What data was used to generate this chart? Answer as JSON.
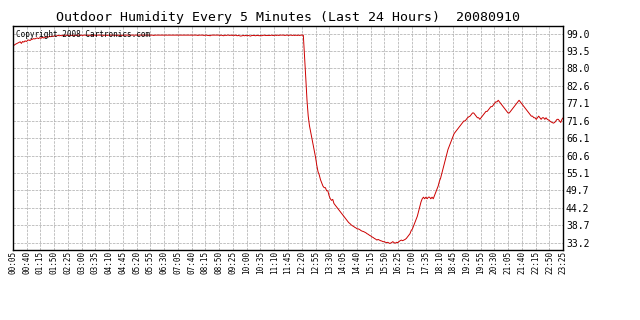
{
  "title": "Outdoor Humidity Every 5 Minutes (Last 24 Hours)  20080910",
  "copyright_text": "Copyright 2008 Cartronics.com",
  "line_color": "#cc0000",
  "background_color": "#ffffff",
  "grid_color": "#aaaaaa",
  "border_color": "#000000",
  "yticks": [
    33.2,
    38.7,
    44.2,
    49.7,
    55.1,
    60.6,
    66.1,
    71.6,
    77.1,
    82.6,
    88.0,
    93.5,
    99.0
  ],
  "ymin": 31.0,
  "ymax": 101.5,
  "x_tick_labels": [
    "00:05",
    "00:40",
    "01:15",
    "01:50",
    "02:25",
    "03:00",
    "03:35",
    "04:10",
    "04:45",
    "05:20",
    "05:55",
    "06:30",
    "07:05",
    "07:40",
    "08:15",
    "08:50",
    "09:25",
    "10:00",
    "10:35",
    "11:10",
    "11:45",
    "12:20",
    "12:55",
    "13:30",
    "14:05",
    "14:40",
    "15:15",
    "15:50",
    "16:25",
    "17:00",
    "17:35",
    "18:10",
    "18:45",
    "19:20",
    "19:55",
    "20:30",
    "21:05",
    "21:40",
    "22:15",
    "22:50",
    "23:25"
  ],
  "humidity_data": [
    95.0,
    95.3,
    95.6,
    95.8,
    96.0,
    96.2,
    96.4,
    95.9,
    96.5,
    96.3,
    96.7,
    96.5,
    96.8,
    97.0,
    96.8,
    97.1,
    97.2,
    97.4,
    97.3,
    97.5,
    97.6,
    97.4,
    97.7,
    97.5,
    97.8,
    97.6,
    97.9,
    97.8,
    98.0,
    97.9,
    98.1,
    98.0,
    98.2,
    98.1,
    98.3,
    98.2,
    98.3,
    98.4,
    98.3,
    98.4,
    98.3,
    98.5,
    98.4,
    98.5,
    98.4,
    98.5,
    98.4,
    98.5,
    98.4,
    98.5,
    98.4,
    98.5,
    98.4,
    98.5,
    98.5,
    98.4,
    98.5,
    98.4,
    98.5,
    98.5,
    98.4,
    98.5,
    98.4,
    98.5,
    98.5,
    98.4,
    98.5,
    98.5,
    98.4,
    98.5,
    98.5,
    98.5,
    98.5,
    98.5,
    98.4,
    98.5,
    98.5,
    98.4,
    98.5,
    98.5,
    98.5,
    98.5,
    98.5,
    98.4,
    98.5,
    98.4,
    98.5,
    98.4,
    98.5,
    98.4,
    98.5,
    98.5,
    98.5,
    98.5,
    98.5,
    98.5,
    98.5,
    98.5,
    98.5,
    98.5,
    98.5,
    98.5,
    98.5,
    98.5,
    98.5,
    98.5,
    98.5,
    98.5,
    98.5,
    98.5,
    98.5,
    98.5,
    98.5,
    98.5,
    98.5,
    98.4,
    98.5,
    98.5,
    98.5,
    98.5,
    98.5,
    98.5,
    98.5,
    98.5,
    98.5,
    98.5,
    98.5,
    98.5,
    98.5,
    98.5,
    98.5,
    98.5,
    98.5,
    98.5,
    98.5,
    98.5,
    98.5,
    98.5,
    98.5,
    98.5,
    98.5,
    98.5,
    98.5,
    98.5,
    98.5,
    98.5,
    98.5,
    98.5,
    98.5,
    98.5,
    98.5,
    98.4,
    98.5,
    98.5,
    98.5,
    98.5,
    98.4,
    98.5,
    98.5,
    98.4,
    98.4,
    98.3,
    98.5,
    98.5,
    98.5,
    98.5,
    98.5,
    98.5,
    98.5,
    98.4,
    98.5,
    98.4,
    98.3,
    98.5,
    98.4,
    98.5,
    98.5,
    98.4,
    98.5,
    98.4,
    98.5,
    98.4,
    98.5,
    98.3,
    98.4,
    98.3,
    98.2,
    98.3,
    98.4,
    98.3,
    98.4,
    98.3,
    98.4,
    98.3,
    98.2,
    98.4,
    98.4,
    98.4,
    98.3,
    98.4,
    98.4,
    98.3,
    98.4,
    98.3,
    98.4,
    98.5,
    98.4,
    98.4,
    98.4,
    98.4,
    98.4,
    98.5,
    98.4,
    98.4,
    98.5,
    98.4,
    98.5,
    98.4,
    98.5,
    98.5,
    98.5,
    98.5,
    98.4,
    98.5,
    98.5,
    98.4,
    98.5,
    98.5,
    98.4,
    98.5,
    98.4,
    98.5,
    98.4,
    98.5,
    98.4,
    98.5,
    98.5,
    98.5,
    92.0,
    85.0,
    78.0,
    73.0,
    70.0,
    68.0,
    66.0,
    64.0,
    62.0,
    60.0,
    57.5,
    55.5,
    54.5,
    53.0,
    52.0,
    51.0,
    50.5,
    50.5,
    49.5,
    49.5,
    48.0,
    47.0,
    46.5,
    46.8,
    45.5,
    45.0,
    44.5,
    44.0,
    43.5,
    43.0,
    42.5,
    42.0,
    41.5,
    41.0,
    40.5,
    40.0,
    39.5,
    39.2,
    38.8,
    38.5,
    38.3,
    38.0,
    37.8,
    37.5,
    37.5,
    37.3,
    37.0,
    36.8,
    36.7,
    36.5,
    36.3,
    36.0,
    35.8,
    35.5,
    35.3,
    35.0,
    34.8,
    34.5,
    34.3,
    34.0,
    34.2,
    34.0,
    33.8,
    33.7,
    33.5,
    33.5,
    33.3,
    33.2,
    33.3,
    33.0,
    33.0,
    33.2,
    33.5,
    33.2,
    33.0,
    33.3,
    33.2,
    33.5,
    33.8,
    34.0,
    33.8,
    34.0,
    34.2,
    34.5,
    35.0,
    35.5,
    36.0,
    37.0,
    37.5,
    38.5,
    39.5,
    40.5,
    41.5,
    43.0,
    44.5,
    46.0,
    47.0,
    47.5,
    47.0,
    47.5,
    47.0,
    47.5,
    47.5,
    47.0,
    47.5,
    47.0,
    48.0,
    49.0,
    50.0,
    51.0,
    52.5,
    53.5,
    55.0,
    56.5,
    58.0,
    59.5,
    61.0,
    62.5,
    63.5,
    64.5,
    65.5,
    66.5,
    67.5,
    68.0,
    68.5,
    69.0,
    69.5,
    70.0,
    70.5,
    71.0,
    71.5,
    71.5,
    72.0,
    72.5,
    72.8,
    73.0,
    73.5,
    74.0,
    74.0,
    73.5,
    73.0,
    72.5,
    72.5,
    72.0,
    72.5,
    73.0,
    73.5,
    74.0,
    74.5,
    74.5,
    75.0,
    75.5,
    76.0,
    76.0,
    76.5,
    77.0,
    77.5,
    77.5,
    78.0,
    77.5,
    77.0,
    76.5,
    76.0,
    75.5,
    75.0,
    74.5,
    74.0,
    74.0,
    74.5,
    75.0,
    75.5,
    76.0,
    76.5,
    77.0,
    77.5,
    78.0,
    77.5,
    77.0,
    76.5,
    76.0,
    75.5,
    75.0,
    74.5,
    74.0,
    73.5,
    73.0,
    73.0,
    72.5,
    72.5,
    72.0,
    72.5,
    73.0,
    72.5,
    72.0,
    72.5,
    72.5,
    72.0,
    72.5,
    72.0,
    71.8,
    71.5,
    71.2,
    71.0,
    70.8,
    71.0,
    71.5,
    72.0,
    72.0,
    71.5,
    71.0,
    72.0,
    72.5
  ]
}
